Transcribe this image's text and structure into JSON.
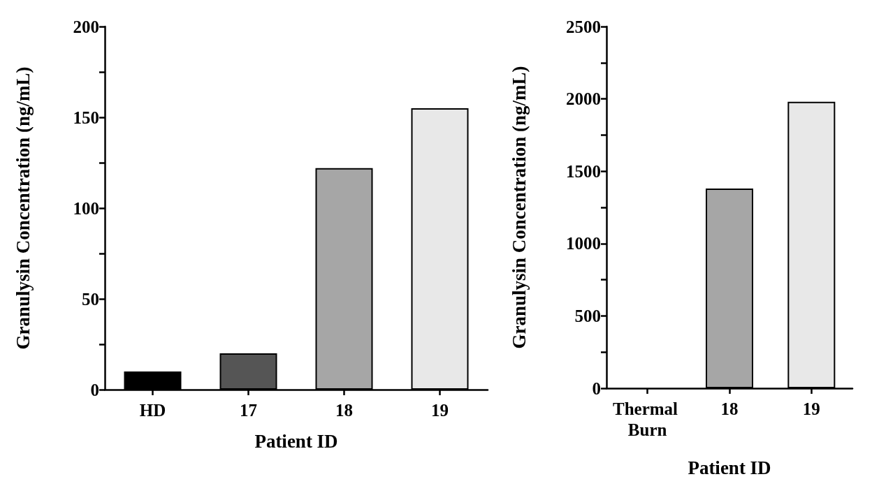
{
  "chart_data": [
    {
      "type": "bar",
      "xlabel": "Patient ID",
      "ylabel": "Granulysin Concentration (ng/mL)",
      "categories": [
        "HD",
        "17",
        "18",
        "19"
      ],
      "values": [
        10,
        20,
        122,
        155
      ],
      "colors": [
        "#000000",
        "#555555",
        "#a6a6a6",
        "#e8e8e8"
      ],
      "ylim": [
        0,
        200
      ],
      "yticks": [
        0,
        {
          "value": 25,
          "label": null
        },
        50,
        {
          "value": 75,
          "label": null
        },
        100,
        {
          "value": 125,
          "label": null
        },
        150,
        {
          "value": 175,
          "label": null
        },
        200
      ],
      "grid": false
    },
    {
      "type": "bar",
      "xlabel": "Patient ID",
      "ylabel": "Granulysin Concentration (ng/mL)",
      "categories": [
        "Thermal Burn",
        "18",
        "19"
      ],
      "values": [
        0,
        1380,
        1980
      ],
      "colors": [
        "#000000",
        "#a6a6a6",
        "#e8e8e8"
      ],
      "ylim": [
        0,
        2500
      ],
      "yticks": [
        0,
        {
          "value": 250,
          "label": null
        },
        500,
        {
          "value": 750,
          "label": null
        },
        1000,
        {
          "value": 1250,
          "label": null
        },
        1500,
        {
          "value": 1750,
          "label": null
        },
        2000,
        {
          "value": 2250,
          "label": null
        },
        2500
      ],
      "grid": false
    }
  ]
}
